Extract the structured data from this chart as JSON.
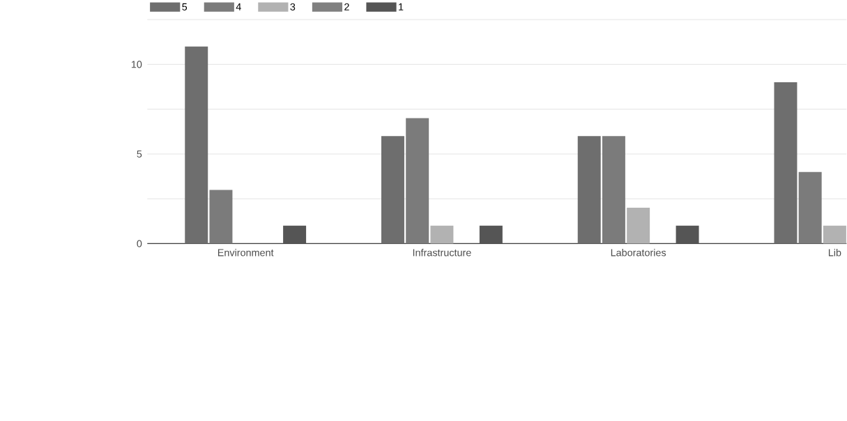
{
  "chart_data": {
    "type": "bar",
    "categories": [
      "Environment",
      "Infrastructure",
      "Laboratories",
      "Lib"
    ],
    "series": [
      {
        "name": "5",
        "color": "#6e6e6e",
        "values": [
          11,
          6,
          6,
          9
        ]
      },
      {
        "name": "4",
        "color": "#7b7b7b",
        "values": [
          3,
          7,
          6,
          4
        ]
      },
      {
        "name": "3",
        "color": "#b2b2b2",
        "values": [
          0,
          1,
          2,
          1
        ]
      },
      {
        "name": "2",
        "color": "#808080",
        "values": [
          0,
          0,
          0,
          null
        ]
      },
      {
        "name": "1",
        "color": "#555555",
        "values": [
          1,
          1,
          1,
          null
        ]
      }
    ],
    "ylim": [
      0,
      12.5
    ],
    "yticks": [
      0,
      {
        "value": 2.5,
        "label": null
      },
      5,
      {
        "value": 7.5,
        "label": null
      },
      10,
      {
        "value": 12.5,
        "label": null
      }
    ],
    "grid": "y",
    "legend": "top left"
  }
}
